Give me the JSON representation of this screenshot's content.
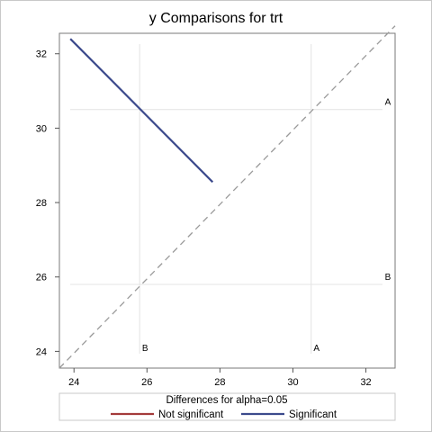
{
  "chart_data": {
    "type": "line",
    "title": "y Comparisons for trt",
    "xlabel": "",
    "ylabel": "",
    "xlim": [
      23.6,
      32.8
    ],
    "ylim": [
      23.55,
      32.55
    ],
    "xticks": [
      24,
      26,
      28,
      30,
      32
    ],
    "yticks": [
      24,
      26,
      28,
      30,
      32
    ],
    "grid": false,
    "diagonal": {
      "from": [
        23.6,
        23.55
      ],
      "to": [
        32.8,
        32.75
      ],
      "style": "dashed"
    },
    "group_levels": [
      {
        "value": 30.5,
        "top_label": "A",
        "right_label": "A"
      },
      {
        "value": 25.8,
        "top_label": "B",
        "right_label": "B"
      }
    ],
    "series": [
      {
        "name": "Significant",
        "color": "#3c4a8c",
        "x": [
          23.9,
          27.8
        ],
        "y": [
          32.4,
          28.55
        ]
      }
    ],
    "legend": {
      "title": "Differences for alpha=0.05",
      "placement": "bottom",
      "entries": [
        {
          "label": "Not significant",
          "color": "#a33a3a"
        },
        {
          "label": "Significant",
          "color": "#3c4a8c"
        }
      ]
    }
  }
}
